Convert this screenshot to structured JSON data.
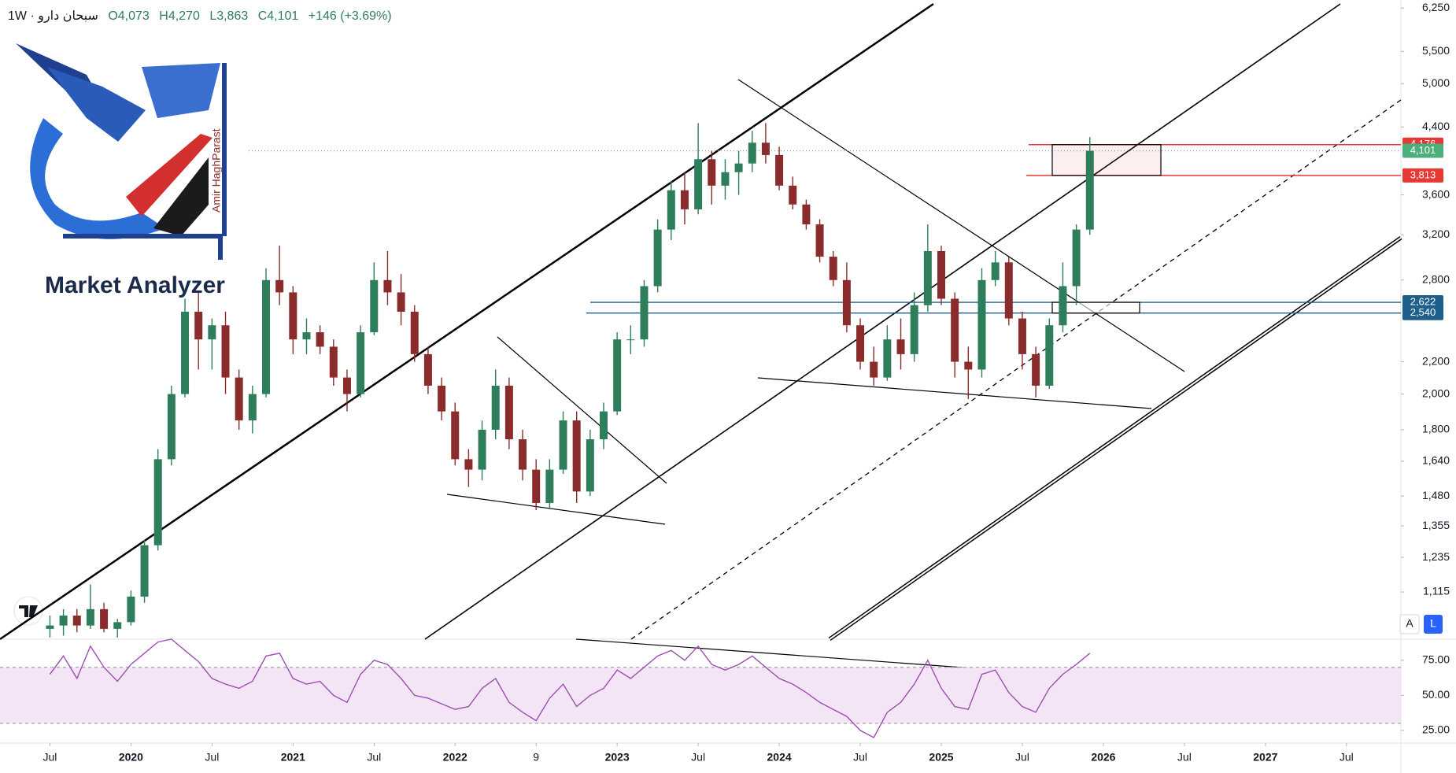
{
  "header": {
    "title": "سبحان دارو · 1W",
    "values": [
      "O4,073",
      "H4,270",
      "L3,863",
      "C4,101",
      "+146 (+3.69%)"
    ]
  },
  "watermark": {
    "name": "Market Analyzer",
    "author": "Amir HaghParast"
  },
  "controls": [
    "A",
    "L"
  ],
  "chart_data": {
    "type": "candlestick",
    "log_scale": true,
    "up_color": "#2e7d5b",
    "down_color": "#8b2c2c",
    "x": [
      "2019-07",
      "2019-08",
      "2019-09",
      "2019-10",
      "2019-11",
      "2019-12",
      "2020-01",
      "2020-02",
      "2020-03",
      "2020-04",
      "2020-05",
      "2020-06",
      "2020-07",
      "2020-08",
      "2020-09",
      "2020-10",
      "2020-11",
      "2020-12",
      "2021-01",
      "2021-02",
      "2021-03",
      "2021-04",
      "2021-05",
      "2021-06",
      "2021-07",
      "2021-08",
      "2021-09",
      "2021-10",
      "2021-11",
      "2021-12",
      "2022-01",
      "2022-02",
      "2022-03",
      "2022-04",
      "2022-05",
      "2022-06",
      "2022-07",
      "2022-08",
      "2022-09",
      "2022-10",
      "2022-11",
      "2022-12",
      "2023-01",
      "2023-02",
      "2023-03",
      "2023-04",
      "2023-05",
      "2023-06",
      "2023-07",
      "2023-08",
      "2023-09",
      "2023-10",
      "2023-11",
      "2023-12",
      "2024-01",
      "2024-02",
      "2024-03",
      "2024-04",
      "2024-05",
      "2024-06",
      "2024-07",
      "2024-08",
      "2024-09",
      "2024-10",
      "2024-11",
      "2024-12",
      "2025-01",
      "2025-02",
      "2025-03",
      "2025-04",
      "2025-05",
      "2025-06",
      "2025-07",
      "2025-08",
      "2025-09",
      "2025-10",
      "2025-11",
      "2025-12"
    ],
    "open": [
      1000,
      1010,
      1040,
      1010,
      1060,
      1000,
      1020,
      1100,
      1280,
      1650,
      2000,
      2550,
      2350,
      2450,
      2100,
      1850,
      2000,
      2800,
      2700,
      2350,
      2400,
      2300,
      2100,
      2000,
      2400,
      2800,
      2700,
      2550,
      2250,
      2050,
      1900,
      1650,
      1600,
      1800,
      2050,
      1750,
      1600,
      1450,
      1600,
      1850,
      1500,
      1750,
      1900,
      2350,
      2350,
      2750,
      3250,
      3650,
      3450,
      4000,
      3700,
      3850,
      3950,
      4200,
      4050,
      3700,
      3500,
      3300,
      3000,
      2800,
      2450,
      2200,
      2100,
      2350,
      2250,
      2600,
      3050,
      2650,
      2200,
      2150,
      2800,
      2950,
      2500,
      2250,
      2050,
      2450,
      2750,
      3250
    ],
    "high": [
      1040,
      1060,
      1060,
      1140,
      1080,
      1030,
      1120,
      1300,
      1700,
      2050,
      2650,
      2700,
      2500,
      2550,
      2150,
      2050,
      2900,
      3100,
      2750,
      2500,
      2450,
      2350,
      2150,
      2450,
      2950,
      3050,
      2850,
      2600,
      2300,
      2100,
      1950,
      1700,
      1850,
      2150,
      2100,
      1800,
      1650,
      1650,
      1900,
      1900,
      1800,
      1950,
      2400,
      2450,
      2800,
      3350,
      3750,
      3850,
      4450,
      4100,
      4000,
      4100,
      4350,
      4450,
      4150,
      3800,
      3550,
      3350,
      3050,
      2950,
      2500,
      2300,
      2450,
      2500,
      2700,
      3300,
      3100,
      2700,
      2300,
      2900,
      3050,
      3000,
      2550,
      2300,
      2500,
      2950,
      3300,
      4270
    ],
    "low": [
      975,
      980,
      990,
      1000,
      990,
      975,
      1010,
      1080,
      1260,
      1620,
      1980,
      2150,
      2150,
      2000,
      1800,
      1780,
      1980,
      2600,
      2250,
      2250,
      2250,
      2050,
      1900,
      1980,
      2380,
      2600,
      2450,
      2200,
      2000,
      1850,
      1620,
      1520,
      1550,
      1750,
      1700,
      1550,
      1420,
      1430,
      1580,
      1450,
      1480,
      1700,
      1880,
      2250,
      2300,
      2700,
      3150,
      3300,
      3400,
      3500,
      3550,
      3600,
      3850,
      3950,
      3650,
      3450,
      3250,
      2950,
      2750,
      2400,
      2150,
      2050,
      2080,
      2150,
      2200,
      2550,
      2600,
      2100,
      1970,
      2100,
      2750,
      2450,
      2150,
      1980,
      2030,
      2400,
      2600,
      3200
    ],
    "close": [
      1010,
      1040,
      1010,
      1060,
      1000,
      1020,
      1100,
      1280,
      1650,
      2000,
      2550,
      2350,
      2450,
      2100,
      1850,
      2000,
      2800,
      2700,
      2350,
      2400,
      2300,
      2100,
      2000,
      2400,
      2800,
      2700,
      2550,
      2250,
      2050,
      1900,
      1650,
      1600,
      1800,
      2050,
      1750,
      1600,
      1450,
      1600,
      1850,
      1500,
      1750,
      1900,
      2350,
      2350,
      2750,
      3250,
      3650,
      3450,
      4000,
      3700,
      3850,
      3950,
      4200,
      4050,
      3700,
      3500,
      3300,
      3000,
      2800,
      2450,
      2200,
      2100,
      2350,
      2250,
      2600,
      3050,
      2650,
      2200,
      2150,
      2800,
      2950,
      2500,
      2250,
      2050,
      2450,
      2750,
      3250,
      4101
    ],
    "ylim": [
      970,
      6400
    ],
    "yticks": [
      {
        "value": 6250,
        "label": "6,250"
      },
      {
        "value": 5500,
        "label": "5,500"
      },
      {
        "value": 5000,
        "label": "5,000"
      },
      {
        "value": 4400,
        "label": "4,400"
      },
      {
        "value": 3600,
        "label": "3,600"
      },
      {
        "value": 3200,
        "label": "3,200"
      },
      {
        "value": 2800,
        "label": "2,800"
      },
      {
        "value": 2200,
        "label": "2,200"
      },
      {
        "value": 2000,
        "label": "2,000"
      },
      {
        "value": 1800,
        "label": "1,800"
      },
      {
        "value": 1640,
        "label": "1,640"
      },
      {
        "value": 1480,
        "label": "1,480"
      },
      {
        "value": 1355,
        "label": "1,355"
      },
      {
        "value": 1235,
        "label": "1,235"
      },
      {
        "value": 1115,
        "label": "1,115"
      }
    ],
    "xticks": [
      {
        "value": "2019-07",
        "label": "Jul"
      },
      {
        "value": "2020-01",
        "label": "2020"
      },
      {
        "value": "2020-07",
        "label": "Jul"
      },
      {
        "value": "2021-01",
        "label": "2021"
      },
      {
        "value": "2021-07",
        "label": "Jul"
      },
      {
        "value": "2022-01",
        "label": "2022"
      },
      {
        "value": "2022-07",
        "label": "9"
      },
      {
        "value": "2023-01",
        "label": "2023"
      },
      {
        "value": "2023-07",
        "label": "Jul"
      },
      {
        "value": "2024-01",
        "label": "2024"
      },
      {
        "value": "2024-07",
        "label": "Jul"
      },
      {
        "value": "2025-01",
        "label": "2025"
      },
      {
        "value": "2025-07",
        "label": "Jul"
      },
      {
        "value": "2026-01",
        "label": "2026"
      },
      {
        "value": "2026-07",
        "label": "Jul"
      },
      {
        "value": "2027-01",
        "label": "2027"
      },
      {
        "value": "2027-07",
        "label": "Jul"
      }
    ],
    "price_levels": [
      {
        "value": 4176,
        "label": "4,176",
        "color": "#e53935"
      },
      {
        "value": 4101,
        "label": "4,101",
        "color": "#4caf7a"
      },
      {
        "value": 3813,
        "label": "3,813",
        "color": "#e53935"
      },
      {
        "value": 2622,
        "label": "2,622",
        "color": "#1f5f8b"
      },
      {
        "value": 2540,
        "label": "2,540",
        "color": "#1f5f8b"
      }
    ],
    "rsi": {
      "color": "#9c4fb0",
      "band_color": "#f3e5f5",
      "band": [
        30,
        70
      ],
      "ylim": [
        16,
        90
      ],
      "yticks": [
        {
          "value": 75,
          "label": "75.00"
        },
        {
          "value": 50,
          "label": "50.00"
        },
        {
          "value": 25,
          "label": "25.00"
        }
      ],
      "values": [
        65,
        78,
        62,
        85,
        70,
        60,
        72,
        80,
        88,
        90,
        82,
        74,
        62,
        58,
        55,
        60,
        78,
        80,
        62,
        58,
        60,
        50,
        45,
        65,
        75,
        72,
        62,
        50,
        48,
        44,
        40,
        42,
        55,
        62,
        45,
        38,
        32,
        48,
        58,
        42,
        50,
        55,
        68,
        62,
        70,
        78,
        82,
        75,
        85,
        72,
        68,
        72,
        78,
        70,
        62,
        58,
        52,
        45,
        40,
        35,
        25,
        20,
        38,
        45,
        58,
        75,
        55,
        42,
        40,
        65,
        68,
        52,
        42,
        38,
        55,
        65,
        72,
        80
      ]
    }
  }
}
